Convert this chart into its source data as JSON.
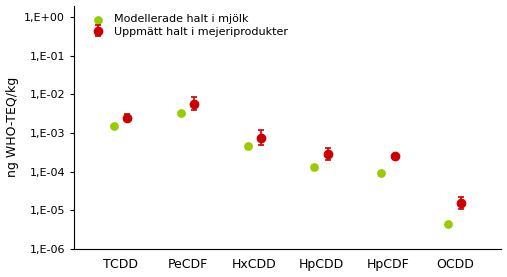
{
  "categories": [
    "TCDD",
    "PeCDF",
    "HxCDD",
    "HpCDD",
    "HpCDF",
    "OCDD"
  ],
  "green_values": [
    0.0015,
    0.0032,
    0.00045,
    0.00013,
    9e-05,
    4.5e-06
  ],
  "red_values": [
    0.0025,
    0.0055,
    0.00075,
    0.00028,
    0.00025,
    1.5e-05
  ],
  "red_err_up": [
    0.0006,
    0.003,
    0.00045,
    0.00012,
    4e-05,
    7e-06
  ],
  "red_err_dn": [
    0.0004,
    0.0015,
    0.00025,
    8e-05,
    3e-05,
    4e-06
  ],
  "green_color": "#99cc00",
  "red_color": "#cc0000",
  "ylabel": "ng WHO-TEQ/kg",
  "legend_green": "Modellerade halt i mjölk",
  "legend_red": "Uppmätt halt i mejeriprodukter",
  "background_color": "#ffffff",
  "ytick_labels": [
    "1,E+00",
    "1,E-01",
    "1,E-02",
    "1,E-03",
    "1,E-04",
    "1,E-05",
    "1,E-06"
  ],
  "ytick_values": [
    1.0,
    0.1,
    0.01,
    0.001,
    0.0001,
    1e-05,
    1e-06
  ]
}
